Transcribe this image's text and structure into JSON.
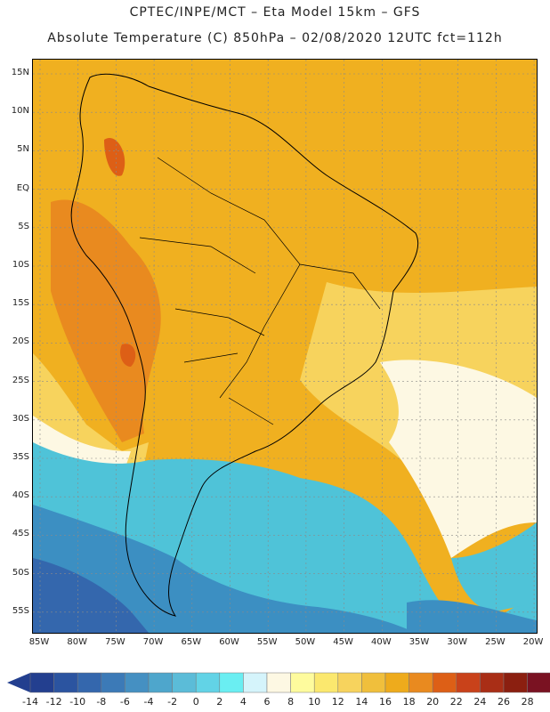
{
  "header": {
    "line1": "CPTEC/INPE/MCT –   Eta Model 15km – GFS",
    "line2": "Absolute Temperature (C) 850hPa – 02/08/2020 12UTC fct=112h"
  },
  "axes": {
    "lat_labels": [
      "15N",
      "10N",
      "5N",
      "EQ",
      "5S",
      "10S",
      "15S",
      "20S",
      "25S",
      "30S",
      "35S",
      "40S",
      "45S",
      "50S",
      "55S"
    ],
    "lon_labels": [
      "85W",
      "80W",
      "75W",
      "70W",
      "65W",
      "60W",
      "55W",
      "50W",
      "45W",
      "40W",
      "35W",
      "30W",
      "25W",
      "20W"
    ]
  },
  "colorbar": {
    "labels": [
      "-14",
      "-12",
      "-10",
      "-8",
      "-6",
      "-4",
      "-2",
      "0",
      "2",
      "4",
      "6",
      "8",
      "10",
      "12",
      "14",
      "16",
      "18",
      "20",
      "22",
      "24",
      "26",
      "28"
    ],
    "colors": [
      "#233f8f",
      "#2b54a0",
      "#3467ad",
      "#3c7ab7",
      "#4590c2",
      "#4ea6cc",
      "#5bbcd8",
      "#62d3e6",
      "#6aeef2",
      "#d5f4fb",
      "#fdf8e3",
      "#fefb9d",
      "#fbe86e",
      "#f7d35d",
      "#f0bf3c",
      "#eeab1c",
      "#e98a1f",
      "#dd5f16",
      "#c9421a",
      "#a92e16",
      "#8b1f10",
      "#7a1222"
    ],
    "under_color": "#233f8f",
    "over_color": "#7a1222"
  },
  "map": {
    "grid": "dotted",
    "ocean_warm": "#f0b020",
    "ocean_mild": "#f7d35d",
    "ocean_cool": "#fdf8e3",
    "ocean_cold": "#4fc3d8",
    "land_hot": "#e98a1f"
  }
}
